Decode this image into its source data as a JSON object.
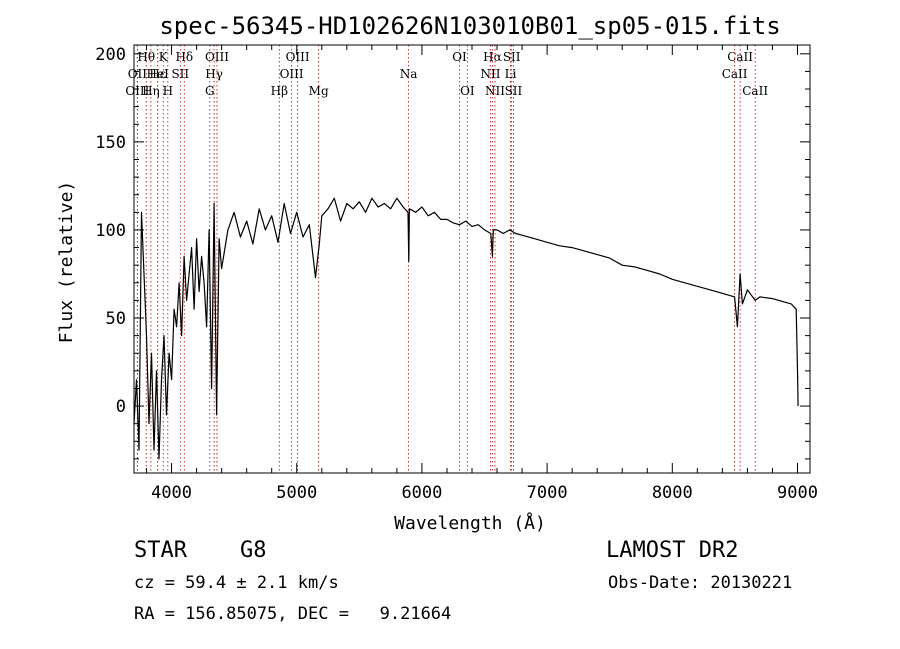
{
  "chart_data": {
    "type": "line",
    "title": "spec-56345-HD102626N103010B01_sp05-015.fits",
    "xlabel": "Wavelength (Å)",
    "ylabel": "Flux (relative)",
    "xlim": [
      3700,
      9100
    ],
    "ylim": [
      -38,
      205
    ],
    "x_ticks": [
      "4000",
      "5000",
      "6000",
      "7000",
      "8000",
      "9000"
    ],
    "x_tick_values": [
      4000,
      5000,
      6000,
      7000,
      8000,
      9000
    ],
    "y_ticks": [
      "0",
      "50",
      "100",
      "150",
      "200"
    ],
    "y_tick_values": [
      0,
      50,
      100,
      150,
      200
    ],
    "grid": false,
    "series": [
      {
        "x": [
          3700,
          3720,
          3740,
          3760,
          3780,
          3800,
          3820,
          3840,
          3860,
          3880,
          3900,
          3920,
          3940,
          3960,
          3980,
          4000,
          4020,
          4040,
          4060,
          4080,
          4100,
          4120,
          4140,
          4160,
          4180,
          4200,
          4220,
          4240,
          4260,
          4280,
          4300,
          4320,
          4340,
          4360,
          4380,
          4400,
          4450,
          4500,
          4550,
          4600,
          4650,
          4700,
          4750,
          4800,
          4850,
          4900,
          4950,
          5000,
          5050,
          5100,
          5150,
          5180,
          5200,
          5250,
          5300,
          5350,
          5400,
          5450,
          5500,
          5550,
          5600,
          5650,
          5700,
          5750,
          5800,
          5850,
          5889,
          5895,
          5900,
          5950,
          6000,
          6050,
          6100,
          6150,
          6200,
          6250,
          6300,
          6350,
          6400,
          6450,
          6500,
          6550,
          6563,
          6570,
          6600,
          6650,
          6700,
          6750,
          6800,
          6900,
          7000,
          7100,
          7200,
          7300,
          7400,
          7500,
          7600,
          7700,
          7800,
          7900,
          8000,
          8100,
          8200,
          8300,
          8400,
          8498,
          8520,
          8542,
          8560,
          8600,
          8662,
          8700,
          8800,
          8900,
          8950,
          8990,
          9000,
          9005
        ],
        "y": [
          -10,
          15,
          -25,
          110,
          75,
          40,
          -10,
          30,
          -25,
          20,
          -30,
          15,
          40,
          -5,
          30,
          15,
          55,
          45,
          70,
          40,
          85,
          60,
          75,
          90,
          55,
          95,
          65,
          85,
          70,
          45,
          100,
          10,
          115,
          -5,
          95,
          78,
          100,
          110,
          96,
          105,
          92,
          112,
          100,
          108,
          93,
          115,
          98,
          110,
          96,
          103,
          73,
          92,
          108,
          112,
          118,
          105,
          115,
          112,
          116,
          110,
          118,
          113,
          115,
          112,
          118,
          113,
          110,
          82,
          112,
          110,
          113,
          108,
          110,
          106,
          106,
          104,
          103,
          105,
          102,
          103,
          100,
          98,
          85,
          100,
          100,
          98,
          100,
          98,
          97,
          95,
          93,
          91,
          90,
          88,
          86,
          84,
          80,
          79,
          77,
          75,
          72,
          70,
          68,
          66,
          64,
          62,
          45,
          75,
          58,
          66,
          60,
          62,
          61,
          59,
          58,
          55,
          20,
          0
        ]
      }
    ],
    "line_annotations": [
      {
        "label": "Hθ",
        "wavelength": 3798,
        "row": 1
      },
      {
        "label": "OII",
        "wavelength": 3727,
        "row": 2
      },
      {
        "label": "OIII",
        "wavelength": 3727,
        "row": 3
      },
      {
        "label": "Hε",
        "wavelength": 3889,
        "row": 2
      },
      {
        "label": "Hη",
        "wavelength": 3835,
        "row": 3
      },
      {
        "label": "HeI",
        "wavelength": 3889,
        "row": 2
      },
      {
        "label": "K",
        "wavelength": 3934,
        "row": 1
      },
      {
        "label": "H",
        "wavelength": 3970,
        "row": 3
      },
      {
        "label": "SII",
        "wavelength": 4070,
        "row": 2
      },
      {
        "label": "Hδ",
        "wavelength": 4102,
        "row": 1
      },
      {
        "label": "OIII",
        "wavelength": 4363,
        "row": 1
      },
      {
        "label": "Hγ",
        "wavelength": 4340,
        "row": 2
      },
      {
        "label": "G",
        "wavelength": 4305,
        "row": 3
      },
      {
        "label": "Hβ",
        "wavelength": 4861,
        "row": 3
      },
      {
        "label": "OIII",
        "wavelength": 5007,
        "row": 1
      },
      {
        "label": "OIII",
        "wavelength": 4959,
        "row": 2
      },
      {
        "label": "Mg",
        "wavelength": 5175,
        "row": 3
      },
      {
        "label": "Na",
        "wavelength": 5893,
        "row": 2
      },
      {
        "label": "OI",
        "wavelength": 6300,
        "row": 1
      },
      {
        "label": "OI",
        "wavelength": 6363,
        "row": 3
      },
      {
        "label": "Hα",
        "wavelength": 6563,
        "row": 1
      },
      {
        "label": "NII",
        "wavelength": 6548,
        "row": 2
      },
      {
        "label": "NII",
        "wavelength": 6584,
        "row": 3
      },
      {
        "label": "SII",
        "wavelength": 6717,
        "row": 1
      },
      {
        "label": "Li",
        "wavelength": 6708,
        "row": 2
      },
      {
        "label": "SII",
        "wavelength": 6731,
        "row": 3
      },
      {
        "label": "CaII",
        "wavelength": 8542,
        "row": 1
      },
      {
        "label": "CaII",
        "wavelength": 8498,
        "row": 2
      },
      {
        "label": "CaII",
        "wavelength": 8662,
        "row": 3
      }
    ]
  },
  "info": {
    "class_label": "STAR",
    "subclass": "G8",
    "survey": "LAMOST DR2",
    "cz": "cz = 59.4 ± 2.1 km/s",
    "obs_date": "Obs-Date: 20130221",
    "coords": "RA = 156.85075, DEC =   9.21664"
  }
}
